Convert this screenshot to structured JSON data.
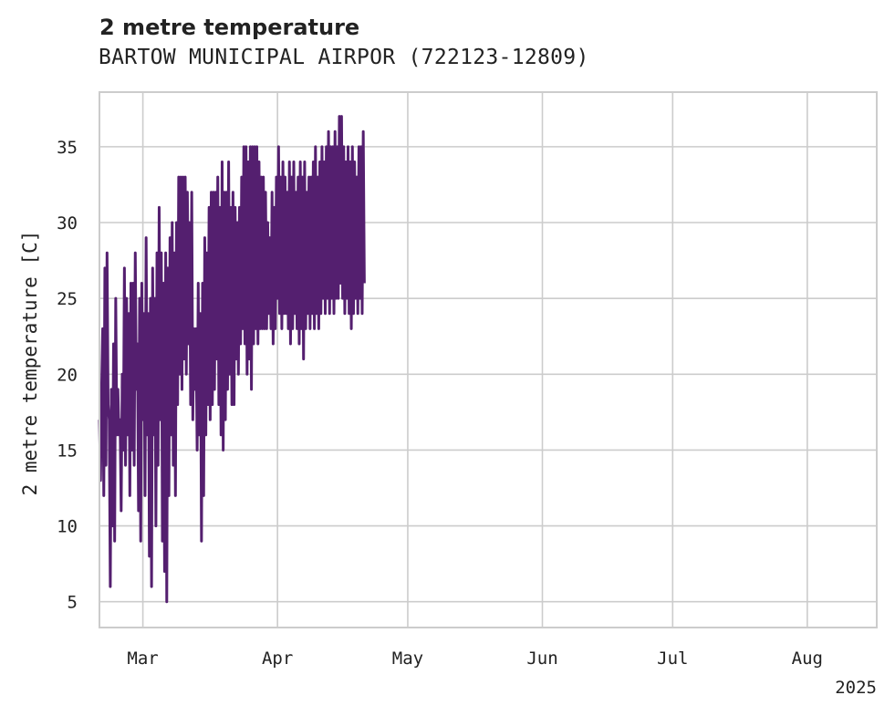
{
  "chart_data": {
    "type": "line",
    "title": "2 metre temperature",
    "subtitle": "BARTOW MUNICIPAL AIRPOR (722123-12809)",
    "ylabel": "2 metre temperature [C]",
    "xlabel": "",
    "year_label": "2025",
    "ylim": [
      3.3,
      38.6
    ],
    "xlim": [
      "2025-02-19",
      "2025-08-17"
    ],
    "yticks": [
      5,
      10,
      15,
      20,
      25,
      30,
      35
    ],
    "xticks": [
      {
        "date": "2025-03-01",
        "label": "Mar"
      },
      {
        "date": "2025-04-01",
        "label": "Apr"
      },
      {
        "date": "2025-05-01",
        "label": "May"
      },
      {
        "date": "2025-06-01",
        "label": "Jun"
      },
      {
        "date": "2025-07-01",
        "label": "Jul"
      },
      {
        "date": "2025-08-01",
        "label": "Aug"
      }
    ],
    "grid": true,
    "series": [
      {
        "color": "#541f6f",
        "start": "2025-02-19",
        "step_days": 0.25,
        "values": [
          17,
          13,
          19,
          23,
          12,
          27,
          14,
          28,
          18,
          17,
          6,
          19,
          10,
          22,
          9,
          25,
          16,
          19,
          16,
          17,
          11,
          20,
          15,
          27,
          14,
          25,
          16,
          24,
          12,
          26,
          15,
          26,
          14,
          28,
          19,
          22,
          11,
          25,
          9,
          26,
          17,
          24,
          12,
          29,
          16,
          24,
          8,
          25,
          6,
          27,
          16,
          25,
          10,
          28,
          14,
          31,
          17,
          28,
          9,
          26,
          7,
          28,
          5,
          27,
          12,
          29,
          16,
          30,
          14,
          28,
          12,
          30,
          18,
          33,
          20,
          33,
          19,
          33,
          21,
          33,
          20,
          32,
          22,
          30,
          18,
          32,
          17,
          23,
          19,
          23,
          15,
          26,
          16,
          24,
          9,
          26,
          12,
          29,
          16,
          28,
          18,
          31,
          17,
          32,
          18,
          32,
          19,
          32,
          21,
          33,
          18,
          31,
          16,
          34,
          15,
          32,
          17,
          32,
          19,
          34,
          20,
          31,
          18,
          32,
          18,
          31,
          21,
          30,
          20,
          31,
          22,
          33,
          23,
          35,
          22,
          35,
          20,
          34,
          21,
          35,
          19,
          35,
          22,
          35,
          23,
          35,
          22,
          34,
          23,
          33,
          23,
          33,
          23,
          32,
          23,
          30,
          24,
          29,
          23,
          32,
          22,
          31,
          23,
          33,
          25,
          35,
          24,
          33,
          23,
          34,
          24,
          33,
          24,
          32,
          23,
          34,
          22,
          33,
          23,
          34,
          24,
          32,
          23,
          33,
          22,
          34,
          23,
          33,
          21,
          34,
          23,
          32,
          24,
          33,
          23,
          33,
          24,
          34,
          23,
          35,
          24,
          33,
          23,
          34,
          24,
          35,
          25,
          34,
          24,
          35,
          25,
          36,
          24,
          35,
          25,
          35,
          24,
          36,
          25,
          35,
          25,
          37,
          26,
          37,
          25,
          35,
          24,
          34,
          25,
          35,
          24,
          34,
          23,
          35,
          24,
          34,
          25,
          33,
          24,
          35,
          25,
          35,
          24,
          36,
          26
        ]
      }
    ]
  }
}
